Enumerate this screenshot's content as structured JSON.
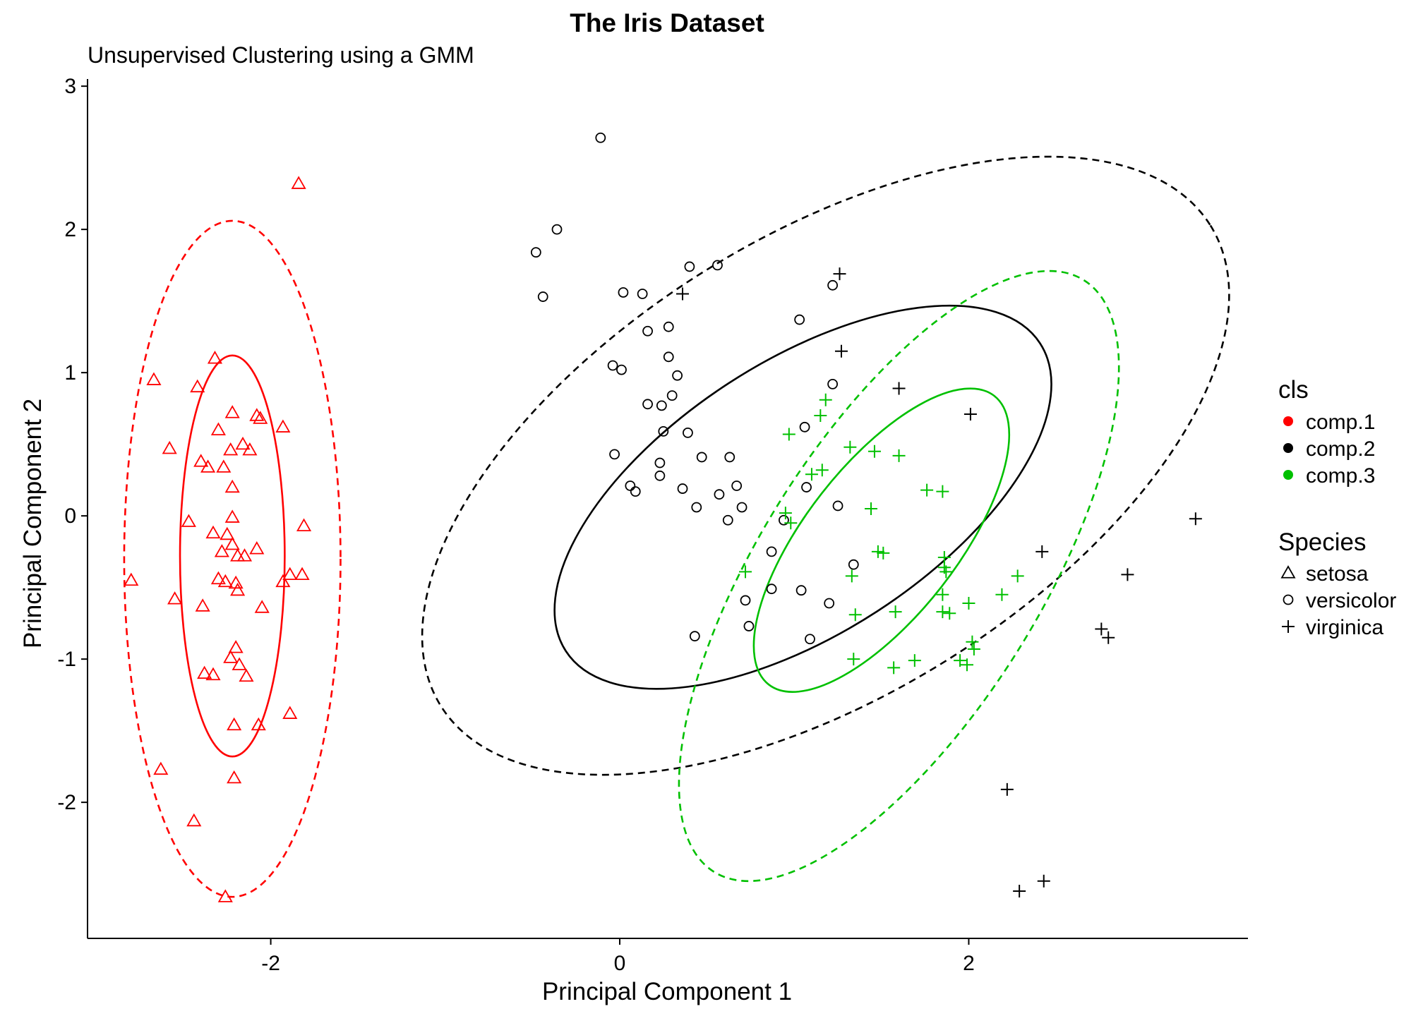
{
  "chart_data": {
    "type": "scatter",
    "title": "The Iris Dataset",
    "subtitle": "Unsupervised Clustering using a GMM",
    "xlabel": "Principal Component 1",
    "ylabel": "Principal Component 2",
    "xlim": [
      -3.05,
      3.6
    ],
    "ylim": [
      -2.95,
      3.05
    ],
    "x_ticks": [
      -2,
      0,
      2
    ],
    "x_tick_labels": [
      "-2",
      "0",
      "2"
    ],
    "y_ticks": [
      -2,
      -1,
      0,
      1,
      2,
      3
    ],
    "y_tick_labels": [
      "-2",
      "-1",
      "0",
      "1",
      "2",
      "3"
    ],
    "grid": false,
    "legend_placement": "right",
    "colors": {
      "comp.1": "#ff0000",
      "comp.2": "#000000",
      "comp.3": "#00c000"
    },
    "legend": {
      "cls": {
        "title": "cls",
        "items": [
          {
            "label": "comp.1",
            "color": "#ff0000"
          },
          {
            "label": "comp.2",
            "color": "#000000"
          },
          {
            "label": "comp.3",
            "color": "#00c000"
          }
        ]
      },
      "species": {
        "title": "Species",
        "items": [
          {
            "label": "setosa",
            "shape": "triangle"
          },
          {
            "label": "versicolor",
            "shape": "circle"
          },
          {
            "label": "virginica",
            "shape": "plus"
          }
        ]
      }
    },
    "ellipses": [
      {
        "cls": "comp.1",
        "style": "solid",
        "center": [
          -2.22,
          -0.28
        ],
        "rx": 0.3,
        "ry": 1.4,
        "angle": 0
      },
      {
        "cls": "comp.1",
        "style": "dashed",
        "center": [
          -2.22,
          -0.3
        ],
        "rx": 0.62,
        "ry": 2.36,
        "angle": 0
      },
      {
        "cls": "comp.2",
        "style": "solid",
        "center": [
          1.05,
          0.13
        ],
        "rx": 1.62,
        "ry": 0.95,
        "angle": -33
      },
      {
        "cls": "comp.2",
        "style": "dashed",
        "center": [
          1.18,
          0.35
        ],
        "rx": 2.6,
        "ry": 1.6,
        "angle": -32
      },
      {
        "cls": "comp.3",
        "style": "solid",
        "center": [
          1.5,
          -0.17
        ],
        "rx": 1.05,
        "ry": 0.53,
        "angle": -52
      },
      {
        "cls": "comp.3",
        "style": "dashed",
        "center": [
          1.6,
          -0.42
        ],
        "rx": 2.0,
        "ry": 0.98,
        "angle": -58
      }
    ],
    "series": [
      {
        "name": "setosa",
        "shape": "triangle",
        "points": [
          [
            -1.84,
            2.32
          ],
          [
            -2.22,
            0.72
          ],
          [
            -2.67,
            0.95
          ],
          [
            -2.42,
            0.9
          ],
          [
            -2.32,
            1.1
          ],
          [
            -2.3,
            0.6
          ],
          [
            -2.06,
            0.68
          ],
          [
            -1.93,
            0.62
          ],
          [
            -2.08,
            0.7
          ],
          [
            -2.23,
            0.46
          ],
          [
            -2.16,
            0.5
          ],
          [
            -2.12,
            0.46
          ],
          [
            -2.58,
            0.47
          ],
          [
            -2.4,
            0.38
          ],
          [
            -2.36,
            0.34
          ],
          [
            -2.27,
            0.34
          ],
          [
            -2.22,
            0.2
          ],
          [
            -2.22,
            -0.01
          ],
          [
            -2.47,
            -0.04
          ],
          [
            -1.81,
            -0.07
          ],
          [
            -2.33,
            -0.12
          ],
          [
            -2.25,
            -0.13
          ],
          [
            -2.28,
            -0.25
          ],
          [
            -2.22,
            -0.2
          ],
          [
            -2.08,
            -0.23
          ],
          [
            -2.15,
            -0.28
          ],
          [
            -2.19,
            -0.28
          ],
          [
            -1.82,
            -0.41
          ],
          [
            -1.89,
            -0.41
          ],
          [
            -1.93,
            -0.46
          ],
          [
            -2.3,
            -0.44
          ],
          [
            -2.26,
            -0.46
          ],
          [
            -2.2,
            -0.47
          ],
          [
            -2.19,
            -0.52
          ],
          [
            -2.55,
            -0.58
          ],
          [
            -2.8,
            -0.45
          ],
          [
            -2.39,
            -0.63
          ],
          [
            -2.05,
            -0.64
          ],
          [
            -2.2,
            -0.92
          ],
          [
            -2.23,
            -0.99
          ],
          [
            -2.38,
            -1.1
          ],
          [
            -2.33,
            -1.11
          ],
          [
            -2.18,
            -1.04
          ],
          [
            -2.14,
            -1.12
          ],
          [
            -1.89,
            -1.38
          ],
          [
            -2.07,
            -1.46
          ],
          [
            -2.21,
            -1.46
          ],
          [
            -2.63,
            -1.77
          ],
          [
            -2.21,
            -1.83
          ],
          [
            -2.44,
            -2.13
          ],
          [
            -2.26,
            -2.66
          ]
        ]
      },
      {
        "name": "versicolor",
        "shape": "circle",
        "points": [
          [
            -0.11,
            2.64
          ],
          [
            -0.36,
            2.0
          ],
          [
            -0.48,
            1.84
          ],
          [
            -0.44,
            1.53
          ],
          [
            0.4,
            1.74
          ],
          [
            0.56,
            1.75
          ],
          [
            0.02,
            1.56
          ],
          [
            0.13,
            1.55
          ],
          [
            1.22,
            1.61
          ],
          [
            1.03,
            1.37
          ],
          [
            0.16,
            1.29
          ],
          [
            0.28,
            1.32
          ],
          [
            0.28,
            1.11
          ],
          [
            0.33,
            0.98
          ],
          [
            -0.04,
            1.05
          ],
          [
            0.01,
            1.02
          ],
          [
            1.22,
            0.92
          ],
          [
            0.3,
            0.84
          ],
          [
            0.16,
            0.78
          ],
          [
            0.24,
            0.77
          ],
          [
            1.06,
            0.62
          ],
          [
            0.25,
            0.59
          ],
          [
            0.39,
            0.58
          ],
          [
            -0.03,
            0.43
          ],
          [
            0.47,
            0.41
          ],
          [
            0.63,
            0.41
          ],
          [
            0.23,
            0.37
          ],
          [
            0.23,
            0.28
          ],
          [
            0.06,
            0.21
          ],
          [
            0.09,
            0.17
          ],
          [
            0.36,
            0.19
          ],
          [
            0.67,
            0.21
          ],
          [
            1.07,
            0.2
          ],
          [
            0.57,
            0.15
          ],
          [
            0.44,
            0.06
          ],
          [
            0.7,
            0.06
          ],
          [
            1.25,
            0.07
          ],
          [
            0.62,
            -0.03
          ],
          [
            0.94,
            -0.03
          ],
          [
            0.87,
            -0.25
          ],
          [
            1.34,
            -0.34
          ],
          [
            0.72,
            -0.59
          ],
          [
            0.87,
            -0.51
          ],
          [
            1.04,
            -0.52
          ],
          [
            1.2,
            -0.61
          ],
          [
            0.74,
            -0.77
          ],
          [
            1.09,
            -0.86
          ],
          [
            0.43,
            -0.84
          ]
        ]
      },
      {
        "name": "virginica",
        "shape": "plus",
        "points": [
          [
            1.26,
            1.69
          ],
          [
            0.36,
            1.55
          ],
          [
            1.27,
            1.15
          ],
          [
            1.6,
            0.89
          ],
          [
            1.18,
            0.81
          ],
          [
            2.01,
            0.71
          ],
          [
            1.15,
            0.7
          ],
          [
            0.97,
            0.57
          ],
          [
            1.32,
            0.48
          ],
          [
            1.46,
            0.45
          ],
          [
            1.6,
            0.42
          ],
          [
            1.1,
            0.29
          ],
          [
            1.16,
            0.32
          ],
          [
            1.76,
            0.18
          ],
          [
            1.85,
            0.17
          ],
          [
            0.95,
            0.02
          ],
          [
            0.98,
            -0.05
          ],
          [
            1.44,
            0.05
          ],
          [
            3.3,
            -0.02
          ],
          [
            1.48,
            -0.25
          ],
          [
            1.51,
            -0.26
          ],
          [
            2.42,
            -0.25
          ],
          [
            1.86,
            -0.29
          ],
          [
            1.86,
            -0.36
          ],
          [
            1.87,
            -0.39
          ],
          [
            1.33,
            -0.42
          ],
          [
            2.28,
            -0.42
          ],
          [
            2.91,
            -0.41
          ],
          [
            1.85,
            -0.55
          ],
          [
            2.19,
            -0.55
          ],
          [
            2.0,
            -0.61
          ],
          [
            1.35,
            -0.69
          ],
          [
            1.58,
            -0.67
          ],
          [
            1.85,
            -0.67
          ],
          [
            1.89,
            -0.68
          ],
          [
            2.76,
            -0.79
          ],
          [
            2.8,
            -0.85
          ],
          [
            2.02,
            -0.88
          ],
          [
            2.03,
            -0.93
          ],
          [
            1.34,
            -1.0
          ],
          [
            1.69,
            -1.01
          ],
          [
            1.95,
            -1.01
          ],
          [
            1.57,
            -1.06
          ],
          [
            1.99,
            -1.04
          ],
          [
            2.22,
            -1.91
          ],
          [
            2.29,
            -2.62
          ],
          [
            2.43,
            -2.55
          ],
          [
            0.72,
            -0.39
          ]
        ]
      }
    ],
    "point_colors_note_removed": true
  }
}
